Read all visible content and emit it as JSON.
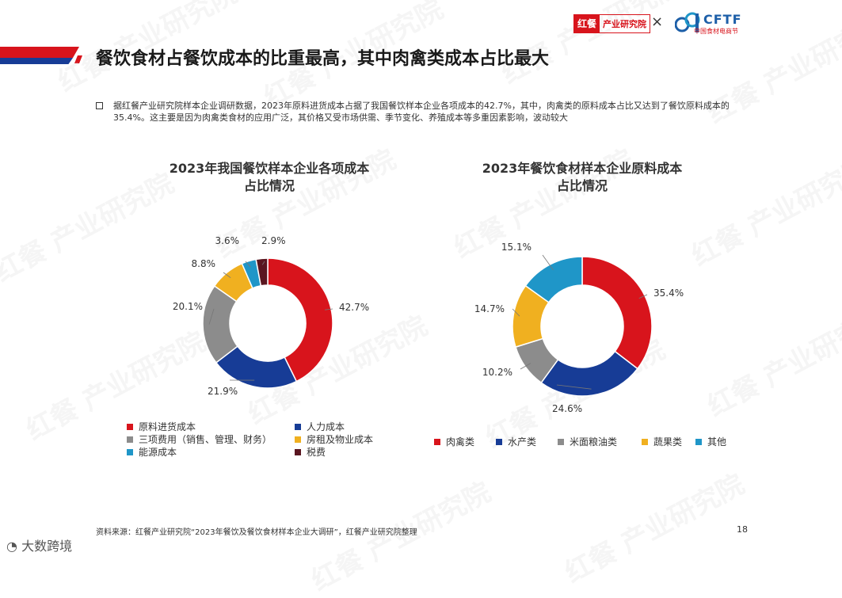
{
  "header": {
    "logo_red_box": "红餐",
    "logo_red_text": "产业研究院",
    "times": "×",
    "logo_cftf": "CFTF",
    "logo_cftf_sub": "中国食材电商节"
  },
  "title": "餐饮食材占餐饮成本的比重最高，其中肉禽类成本占比最大",
  "intro": "据红餐产业研究院样本企业调研数据，2023年原料进货成本占据了我国餐饮样本企业各项成本的42.7%，其中，肉禽类的原料成本占比又达到了餐饮原料成本的35.4%。这主要是因为肉禽类食材的应用广泛，其价格又受市场供需、季节变化、养殖成本等多重因素影响，波动较大",
  "chart_data": [
    {
      "type": "pie",
      "title_line1": "2023年我国餐饮样本企业各项成本",
      "title_line2": "占比情况",
      "categories": [
        "原料进货成本",
        "人力成本",
        "三项费用（销售、管理、财务）",
        "房租及物业成本",
        "能源成本",
        "税费"
      ],
      "values": [
        42.7,
        21.9,
        20.1,
        8.8,
        3.6,
        2.9
      ],
      "labels": [
        "42.7%",
        "21.9%",
        "20.1%",
        "8.8%",
        "3.6%",
        "2.9%"
      ],
      "colors": [
        "#d8141c",
        "#173c96",
        "#8c8c8c",
        "#f0b020",
        "#1f96c8",
        "#5a1620"
      ],
      "legend": "bottom"
    },
    {
      "type": "pie",
      "title_line1": "2023年餐饮食材样本企业原料成本",
      "title_line2": "占比情况",
      "categories": [
        "肉禽类",
        "水产类",
        "米面粮油类",
        "蔬果类",
        "其他"
      ],
      "values": [
        35.4,
        24.6,
        10.2,
        14.7,
        15.1
      ],
      "labels": [
        "35.4%",
        "24.6%",
        "10.2%",
        "14.7%",
        "15.1%"
      ],
      "colors": [
        "#d8141c",
        "#173c96",
        "#8c8c8c",
        "#f0b020",
        "#1f96c8"
      ],
      "legend": "bottom"
    }
  ],
  "source": "资料来源：红餐产业研究院“2023年餐饮及餐饮食材样本企业大调研”，红餐产业研究院整理",
  "page_number": "18",
  "watermark_corner": "大数跨境",
  "watermark_text": "红餐 产业研究院"
}
